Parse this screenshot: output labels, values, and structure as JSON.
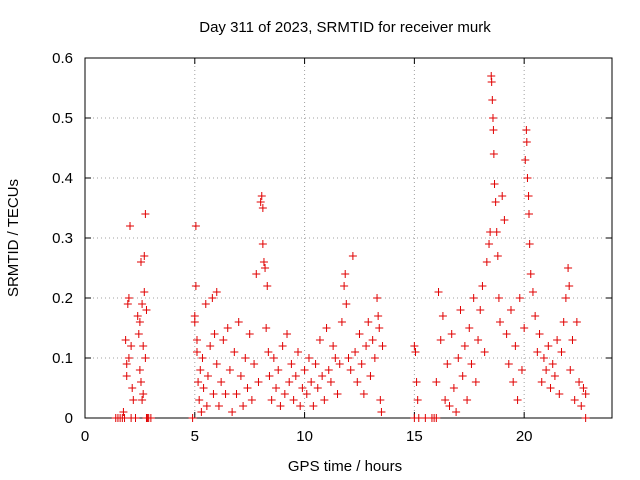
{
  "chart_data": {
    "type": "scatter",
    "title": "Day 311 of 2023, SRMTID for receiver murk",
    "xlabel": "GPS time / hours",
    "ylabel": "SRMTID / TECUs",
    "xlim": [
      0,
      24
    ],
    "ylim": [
      0,
      0.6
    ],
    "xticks": [
      0,
      5,
      10,
      15,
      20
    ],
    "yticks": [
      0,
      0.1,
      0.2,
      0.3,
      0.4,
      0.5,
      0.6
    ],
    "grid": true,
    "marker": "+",
    "series_color": "#e00000",
    "series": [
      {
        "name": "SRMTID",
        "points": [
          [
            1.4,
            0.0
          ],
          [
            1.5,
            0.0
          ],
          [
            1.6,
            0.0
          ],
          [
            1.7,
            0.0
          ],
          [
            1.75,
            0.01
          ],
          [
            1.8,
            0.0
          ],
          [
            1.85,
            0.13
          ],
          [
            1.9,
            0.09
          ],
          [
            1.9,
            0.07
          ],
          [
            1.95,
            0.19
          ],
          [
            2.0,
            0.2
          ],
          [
            2.0,
            0.1
          ],
          [
            2.05,
            0.32
          ],
          [
            2.1,
            0.12
          ],
          [
            2.1,
            0.0
          ],
          [
            2.15,
            0.05
          ],
          [
            2.2,
            0.03
          ],
          [
            2.3,
            0.0
          ],
          [
            2.4,
            0.17
          ],
          [
            2.45,
            0.14
          ],
          [
            2.5,
            0.16
          ],
          [
            2.5,
            0.08
          ],
          [
            2.55,
            0.26
          ],
          [
            2.55,
            0.06
          ],
          [
            2.6,
            0.19
          ],
          [
            2.6,
            0.03
          ],
          [
            2.65,
            0.12
          ],
          [
            2.65,
            0.04
          ],
          [
            2.7,
            0.27
          ],
          [
            2.7,
            0.21
          ],
          [
            2.75,
            0.34
          ],
          [
            2.75,
            0.1
          ],
          [
            2.8,
            0.18
          ],
          [
            2.8,
            0.0
          ],
          [
            2.85,
            0.0
          ],
          [
            2.9,
            0.0
          ],
          [
            3.0,
            0.0
          ],
          [
            4.9,
            0.0
          ],
          [
            5.0,
            0.16
          ],
          [
            5.0,
            0.17
          ],
          [
            5.05,
            0.22
          ],
          [
            5.05,
            0.32
          ],
          [
            5.1,
            0.13
          ],
          [
            5.1,
            0.11
          ],
          [
            5.15,
            0.06
          ],
          [
            5.2,
            0.03
          ],
          [
            5.25,
            0.08
          ],
          [
            5.3,
            0.01
          ],
          [
            5.35,
            0.1
          ],
          [
            5.4,
            0.05
          ],
          [
            5.5,
            0.19
          ],
          [
            5.55,
            0.02
          ],
          [
            5.6,
            0.07
          ],
          [
            5.7,
            0.12
          ],
          [
            5.8,
            0.2
          ],
          [
            5.85,
            0.04
          ],
          [
            5.9,
            0.14
          ],
          [
            6.0,
            0.21
          ],
          [
            6.0,
            0.09
          ],
          [
            6.1,
            0.02
          ],
          [
            6.2,
            0.06
          ],
          [
            6.3,
            0.13
          ],
          [
            6.4,
            0.04
          ],
          [
            6.5,
            0.15
          ],
          [
            6.6,
            0.08
          ],
          [
            6.7,
            0.01
          ],
          [
            6.8,
            0.11
          ],
          [
            6.9,
            0.04
          ],
          [
            7.0,
            0.16
          ],
          [
            7.1,
            0.07
          ],
          [
            7.2,
            0.02
          ],
          [
            7.3,
            0.1
          ],
          [
            7.4,
            0.05
          ],
          [
            7.5,
            0.14
          ],
          [
            7.6,
            0.03
          ],
          [
            7.7,
            0.09
          ],
          [
            7.8,
            0.24
          ],
          [
            7.9,
            0.06
          ],
          [
            8.0,
            0.36
          ],
          [
            8.05,
            0.37
          ],
          [
            8.1,
            0.29
          ],
          [
            8.1,
            0.35
          ],
          [
            8.15,
            0.26
          ],
          [
            8.2,
            0.25
          ],
          [
            8.25,
            0.15
          ],
          [
            8.3,
            0.22
          ],
          [
            8.35,
            0.11
          ],
          [
            8.4,
            0.07
          ],
          [
            8.5,
            0.03
          ],
          [
            8.6,
            0.1
          ],
          [
            8.7,
            0.05
          ],
          [
            8.8,
            0.08
          ],
          [
            8.9,
            0.02
          ],
          [
            9.0,
            0.12
          ],
          [
            9.1,
            0.04
          ],
          [
            9.2,
            0.14
          ],
          [
            9.3,
            0.06
          ],
          [
            9.4,
            0.09
          ],
          [
            9.5,
            0.03
          ],
          [
            9.6,
            0.07
          ],
          [
            9.7,
            0.11
          ],
          [
            9.8,
            0.02
          ],
          [
            9.9,
            0.05
          ],
          [
            10.0,
            0.08
          ],
          [
            10.1,
            0.04
          ],
          [
            10.2,
            0.1
          ],
          [
            10.3,
            0.06
          ],
          [
            10.4,
            0.02
          ],
          [
            10.5,
            0.09
          ],
          [
            10.6,
            0.05
          ],
          [
            10.7,
            0.13
          ],
          [
            10.8,
            0.07
          ],
          [
            10.9,
            0.03
          ],
          [
            11.0,
            0.15
          ],
          [
            11.1,
            0.08
          ],
          [
            11.2,
            0.06
          ],
          [
            11.3,
            0.12
          ],
          [
            11.4,
            0.1
          ],
          [
            11.5,
            0.04
          ],
          [
            11.6,
            0.09
          ],
          [
            11.7,
            0.16
          ],
          [
            11.8,
            0.22
          ],
          [
            11.85,
            0.24
          ],
          [
            11.9,
            0.19
          ],
          [
            12.0,
            0.1
          ],
          [
            12.1,
            0.08
          ],
          [
            12.2,
            0.27
          ],
          [
            12.3,
            0.11
          ],
          [
            12.4,
            0.06
          ],
          [
            12.5,
            0.14
          ],
          [
            12.6,
            0.09
          ],
          [
            12.7,
            0.04
          ],
          [
            12.8,
            0.12
          ],
          [
            12.9,
            0.16
          ],
          [
            13.0,
            0.07
          ],
          [
            13.1,
            0.13
          ],
          [
            13.2,
            0.1
          ],
          [
            13.3,
            0.2
          ],
          [
            13.35,
            0.17
          ],
          [
            13.4,
            0.15
          ],
          [
            13.45,
            0.03
          ],
          [
            13.5,
            0.01
          ],
          [
            13.55,
            0.12
          ],
          [
            15.0,
            0.12
          ],
          [
            15.05,
            0.11
          ],
          [
            15.1,
            0.06
          ],
          [
            15.15,
            0.03
          ],
          [
            15.2,
            0.0
          ],
          [
            15.0,
            0.0
          ],
          [
            15.5,
            0.0
          ],
          [
            15.8,
            0.0
          ],
          [
            15.9,
            0.0
          ],
          [
            16.0,
            0.0
          ],
          [
            16.0,
            0.06
          ],
          [
            16.1,
            0.21
          ],
          [
            16.2,
            0.13
          ],
          [
            16.3,
            0.17
          ],
          [
            16.4,
            0.03
          ],
          [
            16.5,
            0.09
          ],
          [
            16.6,
            0.02
          ],
          [
            16.7,
            0.14
          ],
          [
            16.8,
            0.05
          ],
          [
            16.9,
            0.01
          ],
          [
            17.0,
            0.1
          ],
          [
            17.1,
            0.18
          ],
          [
            17.2,
            0.07
          ],
          [
            17.3,
            0.12
          ],
          [
            17.4,
            0.03
          ],
          [
            17.5,
            0.15
          ],
          [
            17.6,
            0.09
          ],
          [
            17.7,
            0.2
          ],
          [
            17.8,
            0.06
          ],
          [
            17.9,
            0.13
          ],
          [
            18.0,
            0.18
          ],
          [
            18.1,
            0.22
          ],
          [
            18.2,
            0.11
          ],
          [
            18.3,
            0.26
          ],
          [
            18.4,
            0.29
          ],
          [
            18.45,
            0.31
          ],
          [
            18.5,
            0.57
          ],
          [
            18.52,
            0.56
          ],
          [
            18.55,
            0.53
          ],
          [
            18.58,
            0.5
          ],
          [
            18.6,
            0.48
          ],
          [
            18.62,
            0.44
          ],
          [
            18.65,
            0.39
          ],
          [
            18.7,
            0.36
          ],
          [
            18.75,
            0.31
          ],
          [
            18.8,
            0.27
          ],
          [
            18.85,
            0.2
          ],
          [
            18.9,
            0.16
          ],
          [
            19.0,
            0.37
          ],
          [
            19.1,
            0.33
          ],
          [
            19.2,
            0.14
          ],
          [
            19.3,
            0.09
          ],
          [
            19.4,
            0.18
          ],
          [
            19.5,
            0.06
          ],
          [
            19.6,
            0.12
          ],
          [
            19.7,
            0.03
          ],
          [
            19.8,
            0.2
          ],
          [
            19.9,
            0.08
          ],
          [
            20.0,
            0.15
          ],
          [
            20.05,
            0.43
          ],
          [
            20.1,
            0.48
          ],
          [
            20.12,
            0.46
          ],
          [
            20.15,
            0.4
          ],
          [
            20.2,
            0.37
          ],
          [
            20.22,
            0.34
          ],
          [
            20.25,
            0.29
          ],
          [
            20.3,
            0.24
          ],
          [
            20.4,
            0.21
          ],
          [
            20.5,
            0.17
          ],
          [
            20.6,
            0.11
          ],
          [
            20.7,
            0.14
          ],
          [
            20.8,
            0.06
          ],
          [
            20.9,
            0.1
          ],
          [
            21.0,
            0.08
          ],
          [
            21.1,
            0.12
          ],
          [
            21.2,
            0.05
          ],
          [
            21.3,
            0.09
          ],
          [
            21.4,
            0.07
          ],
          [
            21.5,
            0.13
          ],
          [
            21.6,
            0.04
          ],
          [
            21.7,
            0.11
          ],
          [
            21.8,
            0.16
          ],
          [
            21.9,
            0.2
          ],
          [
            22.0,
            0.25
          ],
          [
            22.05,
            0.22
          ],
          [
            22.1,
            0.08
          ],
          [
            22.2,
            0.13
          ],
          [
            22.3,
            0.03
          ],
          [
            22.4,
            0.16
          ],
          [
            22.5,
            0.06
          ],
          [
            22.6,
            0.02
          ],
          [
            22.7,
            0.05
          ],
          [
            22.8,
            0.0
          ],
          [
            22.8,
            0.04
          ]
        ]
      }
    ]
  }
}
